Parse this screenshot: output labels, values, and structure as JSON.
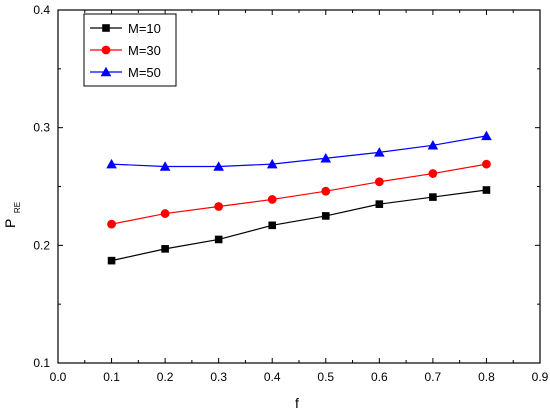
{
  "chart_data": {
    "type": "line",
    "xlabel": "f",
    "ylabel": "P",
    "ylabel_sub": "RE",
    "xlim": [
      0.0,
      0.9
    ],
    "ylim": [
      0.1,
      0.4
    ],
    "x_ticks": [
      "0.0",
      "0.1",
      "0.2",
      "0.3",
      "0.4",
      "0.5",
      "0.6",
      "0.7",
      "0.8",
      "0.9"
    ],
    "y_ticks": [
      "0.1",
      "0.2",
      "0.3",
      "0.4"
    ],
    "grid": false,
    "legend_position": "top-left",
    "x": [
      0.1,
      0.2,
      0.3,
      0.4,
      0.5,
      0.6,
      0.7,
      0.8
    ],
    "series": [
      {
        "name": "M=10",
        "color": "#000000",
        "marker": "square",
        "values": [
          0.187,
          0.197,
          0.205,
          0.217,
          0.225,
          0.235,
          0.241,
          0.247
        ]
      },
      {
        "name": "M=30",
        "color": "#ff0000",
        "marker": "circle",
        "values": [
          0.218,
          0.227,
          0.233,
          0.239,
          0.246,
          0.254,
          0.261,
          0.269
        ]
      },
      {
        "name": "M=50",
        "color": "#0000ff",
        "marker": "triangle",
        "values": [
          0.269,
          0.267,
          0.267,
          0.269,
          0.274,
          0.279,
          0.285,
          0.293
        ]
      }
    ]
  }
}
